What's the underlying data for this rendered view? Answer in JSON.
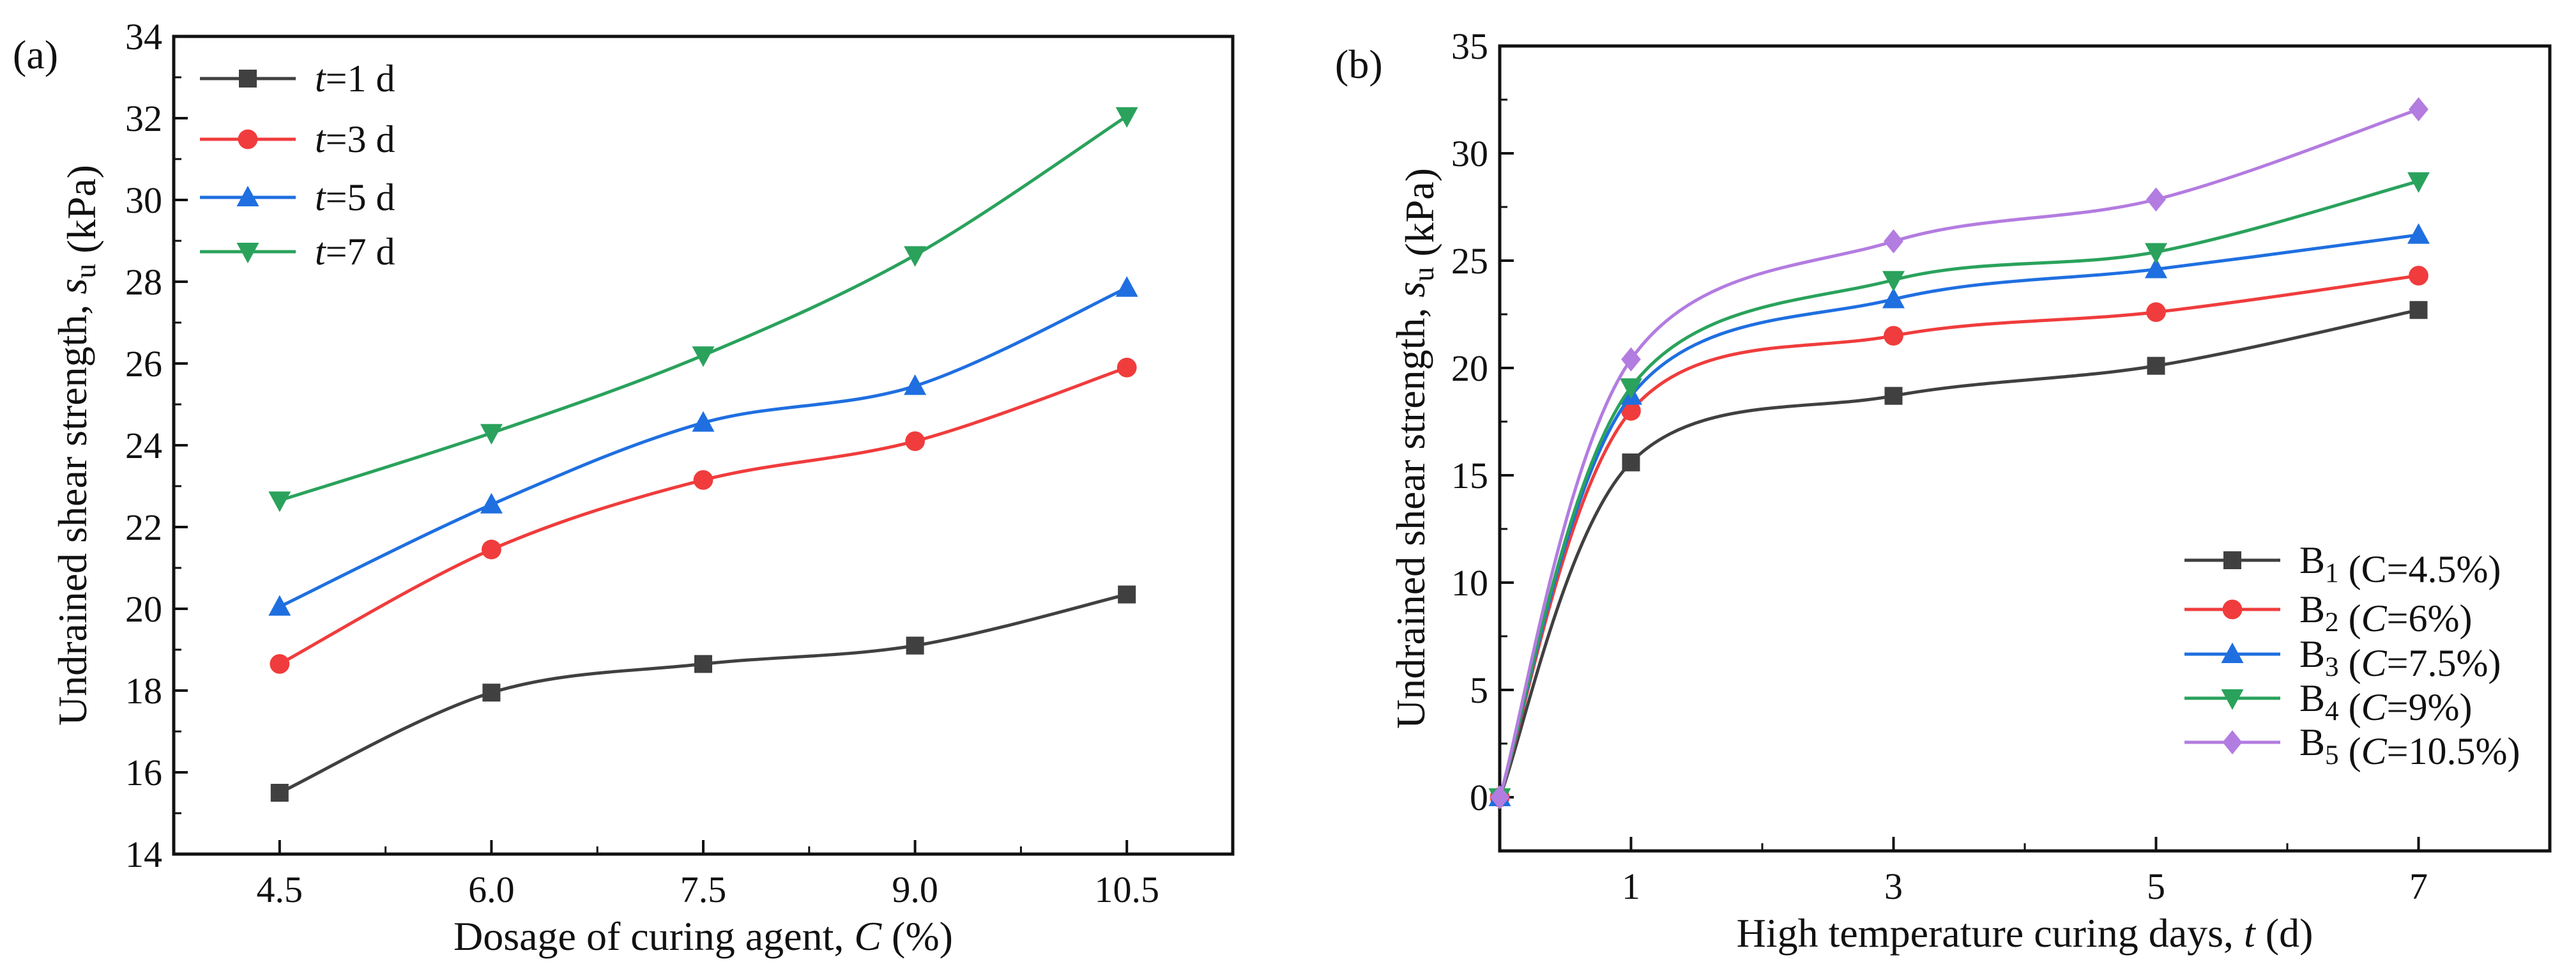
{
  "chart_data": [
    {
      "type": "line",
      "panel_label": "(a)",
      "x": [
        4.5,
        6.0,
        7.5,
        9.0,
        10.5
      ],
      "xticks": [
        "4.5",
        "6.0",
        "7.5",
        "9.0",
        "10.5"
      ],
      "xlim": [
        3.75,
        11.25
      ],
      "ylim": [
        14,
        34
      ],
      "yticks": [
        "14",
        "16",
        "18",
        "20",
        "22",
        "24",
        "26",
        "28",
        "30",
        "32",
        "34"
      ],
      "xlabel": [
        {
          "t": "Dosage of curing agent, "
        },
        {
          "t": "C",
          "i": true
        },
        {
          "t": " (%)"
        }
      ],
      "ylabel": [
        {
          "t": "Undrained shear strength, "
        },
        {
          "t": "s",
          "i": true
        },
        {
          "t": "u",
          "sub": true
        },
        {
          "t": " (kPa)"
        }
      ],
      "legend_position": "top-left",
      "grid": false,
      "series": [
        {
          "name": [
            {
              "t": "t",
              "i": true
            },
            {
              "t": "=1 d"
            }
          ],
          "color": "#404040",
          "marker": "square",
          "values": [
            15.5,
            17.95,
            18.65,
            19.1,
            20.35
          ]
        },
        {
          "name": [
            {
              "t": "t",
              "i": true
            },
            {
              "t": "=3 d"
            }
          ],
          "color": "#f03c3c",
          "marker": "circle",
          "values": [
            18.65,
            21.45,
            23.15,
            24.1,
            25.9
          ]
        },
        {
          "name": [
            {
              "t": "t",
              "i": true
            },
            {
              "t": "=5 d"
            }
          ],
          "color": "#1f6fe0",
          "marker": "triangle-up",
          "values": [
            20.05,
            22.55,
            24.55,
            25.45,
            27.85
          ]
        },
        {
          "name": [
            {
              "t": "t",
              "i": true
            },
            {
              "t": "=7 d"
            }
          ],
          "color": "#2aa25c",
          "marker": "triangle-down",
          "values": [
            22.65,
            24.3,
            26.2,
            28.65,
            32.05
          ]
        }
      ]
    },
    {
      "type": "line",
      "panel_label": "(b)",
      "x": [
        0,
        1,
        3,
        5,
        7
      ],
      "xticks": [
        "1",
        "3",
        "5",
        "7"
      ],
      "xtick_values": [
        1,
        3,
        5,
        7
      ],
      "xlim": [
        0,
        8
      ],
      "ylim": [
        -2.5,
        35
      ],
      "yticks": [
        "0",
        "5",
        "10",
        "15",
        "20",
        "25",
        "30",
        "35"
      ],
      "xlabel": [
        {
          "t": "High temperature curing days, "
        },
        {
          "t": "t",
          "i": true
        },
        {
          "t": " (d)"
        }
      ],
      "ylabel": [
        {
          "t": "Undrained shear strength, "
        },
        {
          "t": "s",
          "i": true
        },
        {
          "t": "u",
          "sub": true
        },
        {
          "t": " (kPa)"
        }
      ],
      "legend_position": "bottom-right",
      "grid": false,
      "series": [
        {
          "name": [
            {
              "t": "B"
            },
            {
              "t": "1",
              "sub": true
            },
            {
              "t": " (C=4.5%)"
            }
          ],
          "color": "#404040",
          "marker": "square",
          "values": [
            0,
            15.6,
            18.7,
            20.1,
            22.7
          ]
        },
        {
          "name": [
            {
              "t": "B"
            },
            {
              "t": "2",
              "sub": true
            },
            {
              "t": " ("
            },
            {
              "t": "C",
              "i": true
            },
            {
              "t": "=6%)"
            }
          ],
          "color": "#f03c3c",
          "marker": "circle",
          "values": [
            0,
            18.0,
            21.5,
            22.6,
            24.3
          ]
        },
        {
          "name": [
            {
              "t": "B"
            },
            {
              "t": "3",
              "sub": true
            },
            {
              "t": " ("
            },
            {
              "t": "C",
              "i": true
            },
            {
              "t": "=7.5%)"
            }
          ],
          "color": "#1f6fe0",
          "marker": "triangle-up",
          "values": [
            0,
            18.7,
            23.2,
            24.6,
            26.2
          ]
        },
        {
          "name": [
            {
              "t": "B"
            },
            {
              "t": "4",
              "sub": true
            },
            {
              "t": " ("
            },
            {
              "t": "C",
              "i": true
            },
            {
              "t": "=9%)"
            }
          ],
          "color": "#2aa25c",
          "marker": "triangle-down",
          "values": [
            0,
            19.1,
            24.1,
            25.4,
            28.7
          ]
        },
        {
          "name": [
            {
              "t": "B"
            },
            {
              "t": "5",
              "sub": true
            },
            {
              "t": " ("
            },
            {
              "t": "C",
              "i": true
            },
            {
              "t": "=10.5%)"
            }
          ],
          "color": "#b37ce0",
          "marker": "diamond",
          "values": [
            0,
            20.4,
            25.9,
            27.85,
            32.05
          ]
        }
      ]
    }
  ]
}
